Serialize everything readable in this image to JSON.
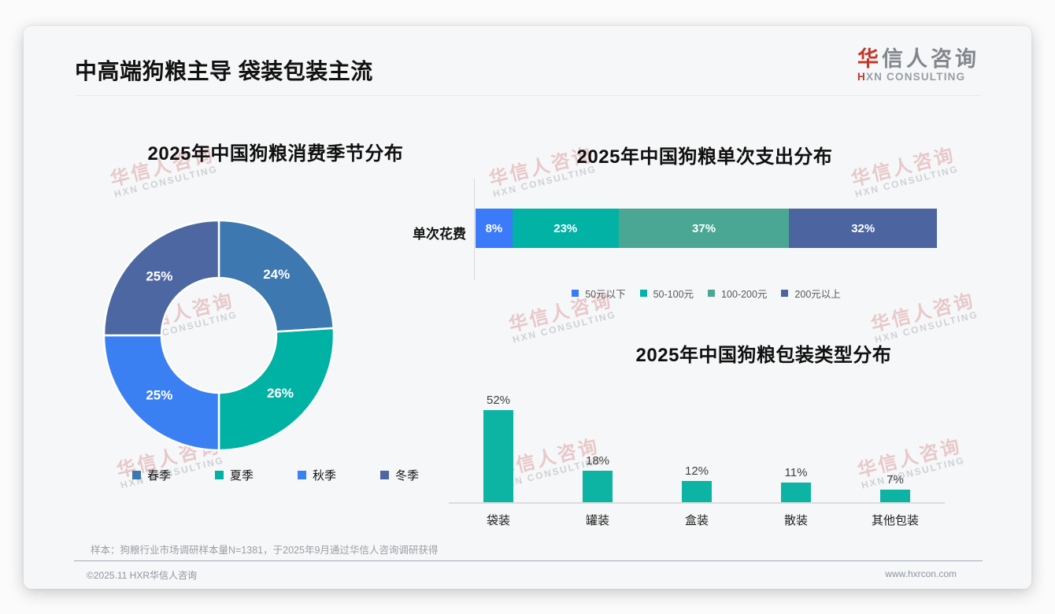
{
  "page": {
    "title": "中高端狗粮主导 袋装包装主流",
    "sample_note": "样本：狗粮行业市场调研样本量N=1381，于2025年9月通过华信人咨询调研获得",
    "footer_left": "©2025.11 HXR华信人咨询",
    "footer_right": "www.hxrcon.com"
  },
  "logo": {
    "cn_accent": "华",
    "cn_rest": "信人咨询",
    "en_accent": "H",
    "en_rest": "XN CONSULTING"
  },
  "watermark": {
    "cn": "华信人咨询",
    "en": "HXN CONSULTING"
  },
  "chart_data": [
    {
      "type": "pie",
      "subtype": "donut",
      "title": "2025年中国狗粮消费季节分布",
      "labels": [
        "春季",
        "夏季",
        "秋季",
        "冬季"
      ],
      "values": [
        24,
        26,
        25,
        25
      ],
      "unit": "%",
      "colors": [
        "#3e78b0",
        "#00b2a3",
        "#3b80f2",
        "#4d67a2"
      ],
      "legend_position": "bottom",
      "data_labels": [
        "24%",
        "26%",
        "25%",
        "25%"
      ]
    },
    {
      "type": "bar",
      "subtype": "horizontal-stacked",
      "title": "2025年中国狗粮单次支出分布",
      "row_label": "单次花费",
      "categories": [
        "50元以下",
        "50-100元",
        "100-200元",
        "200元以上"
      ],
      "values": [
        8,
        23,
        37,
        32
      ],
      "unit": "%",
      "colors": [
        "#3b7af8",
        "#02b2a4",
        "#49a793",
        "#4c64a0"
      ],
      "xlim": [
        0,
        100
      ],
      "legend_position": "bottom",
      "data_labels": [
        "8%",
        "23%",
        "37%",
        "32%"
      ]
    },
    {
      "type": "bar",
      "subtype": "vertical",
      "title": "2025年中国狗粮包装类型分布",
      "categories": [
        "袋装",
        "罐装",
        "盒装",
        "散装",
        "其他包装"
      ],
      "values": [
        52,
        18,
        12,
        11,
        7
      ],
      "unit": "%",
      "bar_color": "#0db3a3",
      "ylim": [
        0,
        60
      ],
      "data_labels": [
        "52%",
        "18%",
        "12%",
        "11%",
        "7%"
      ]
    }
  ]
}
